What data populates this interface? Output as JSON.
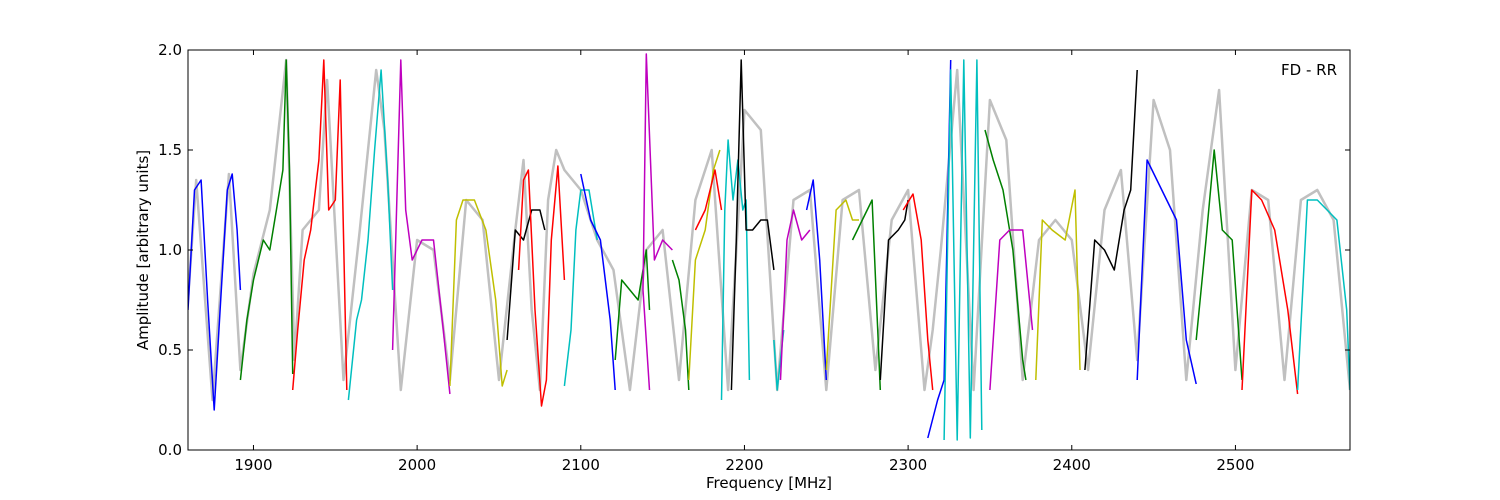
{
  "chart_data": {
    "type": "line",
    "title": "",
    "annotation": "FD - RR",
    "xlabel": "Frequency [MHz]",
    "ylabel": "Amplitude [arbitrary units]",
    "xlim": [
      1860,
      2570
    ],
    "ylim": [
      0.0,
      2.0
    ],
    "xticks": [
      1900,
      2000,
      2100,
      2200,
      2300,
      2400,
      2500
    ],
    "yticks": [
      0.0,
      0.5,
      1.0,
      1.5,
      2.0
    ],
    "xtick_labels": [
      "1900",
      "2000",
      "2100",
      "2200",
      "2300",
      "2400",
      "2500"
    ],
    "ytick_labels": [
      "0.0",
      "0.5",
      "1.0",
      "1.5",
      "2.0"
    ],
    "grid": false,
    "colors": {
      "envelope": "#c0c0c0",
      "blue": "#0000ff",
      "green": "#008000",
      "red": "#ff0000",
      "cyan": "#00bfbf",
      "magenta": "#bf00bf",
      "olive": "#bfbf00",
      "black": "#000000"
    },
    "series": [
      {
        "color": "envelope",
        "x": [
          1860,
          1865,
          1875,
          1885,
          1892,
          1900,
          1910,
          1920,
          1925,
          1930,
          1940,
          1945,
          1955,
          1965,
          1975,
          1980,
          1990,
          2000,
          2010,
          2020,
          2030,
          2040,
          2050,
          2060,
          2065,
          2070,
          2075,
          2080,
          2085,
          2090,
          2100,
          2110,
          2120,
          2130,
          2140,
          2150,
          2160,
          2170,
          2180,
          2190,
          2200,
          2210,
          2220,
          2230,
          2240,
          2250,
          2260,
          2270,
          2280,
          2290,
          2300,
          2310,
          2315,
          2320,
          2330,
          2340,
          2350,
          2360,
          2370,
          2380,
          2390,
          2400,
          2410,
          2420,
          2430,
          2440,
          2450,
          2460,
          2470,
          2480,
          2490,
          2500,
          2510,
          2520,
          2530,
          2540,
          2550,
          2560,
          2570
        ],
        "y": [
          0.75,
          1.35,
          0.25,
          1.38,
          0.4,
          0.88,
          1.2,
          1.95,
          0.45,
          1.1,
          1.2,
          1.85,
          0.35,
          1.1,
          1.9,
          1.6,
          0.3,
          1.05,
          1.0,
          0.35,
          1.25,
          1.15,
          0.35,
          1.1,
          1.45,
          0.7,
          0.3,
          1.25,
          1.5,
          1.4,
          1.3,
          1.05,
          0.9,
          0.3,
          1.0,
          1.1,
          0.35,
          1.25,
          1.5,
          0.3,
          1.7,
          1.6,
          0.3,
          1.25,
          1.3,
          0.3,
          1.25,
          1.3,
          0.4,
          1.15,
          1.3,
          0.3,
          0.6,
          1.0,
          1.9,
          0.3,
          1.75,
          1.55,
          0.35,
          1.05,
          1.15,
          1.05,
          0.4,
          1.2,
          1.4,
          0.45,
          1.75,
          1.5,
          0.35,
          1.2,
          1.8,
          0.4,
          1.3,
          1.25,
          0.35,
          1.25,
          1.3,
          1.15,
          0.3
        ]
      },
      {
        "color": "blue",
        "x": [
          1860,
          1864,
          1868,
          1872,
          1876,
          1880,
          1884,
          1887,
          1890,
          1892
        ],
        "y": [
          0.7,
          1.3,
          1.35,
          0.75,
          0.2,
          0.75,
          1.3,
          1.38,
          1.1,
          0.8
        ]
      },
      {
        "color": "green",
        "x": [
          1892,
          1896,
          1900,
          1906,
          1910,
          1914,
          1918,
          1920,
          1922,
          1924
        ],
        "y": [
          0.35,
          0.65,
          0.85,
          1.05,
          1.0,
          1.2,
          1.4,
          1.95,
          1.4,
          0.38
        ]
      },
      {
        "color": "red",
        "x": [
          1924,
          1927,
          1931,
          1935,
          1940,
          1943,
          1946,
          1950,
          1953,
          1957
        ],
        "y": [
          0.3,
          0.6,
          0.95,
          1.1,
          1.45,
          1.95,
          1.2,
          1.25,
          1.85,
          0.3
        ]
      },
      {
        "color": "cyan",
        "x": [
          1958,
          1963,
          1966,
          1970,
          1974,
          1978,
          1982,
          1985
        ],
        "y": [
          0.25,
          0.65,
          0.75,
          1.05,
          1.5,
          1.9,
          1.35,
          0.8
        ]
      },
      {
        "color": "magenta",
        "x": [
          1985,
          1990,
          1993,
          1997,
          2003,
          2010,
          2016,
          2020
        ],
        "y": [
          0.5,
          1.95,
          1.2,
          0.95,
          1.05,
          1.05,
          0.6,
          0.28
        ]
      },
      {
        "color": "olive",
        "x": [
          2020,
          2024,
          2028,
          2035,
          2042,
          2048,
          2052,
          2055
        ],
        "y": [
          0.32,
          1.15,
          1.25,
          1.25,
          1.1,
          0.75,
          0.32,
          0.4
        ]
      },
      {
        "color": "black",
        "x": [
          2055,
          2060,
          2065,
          2070,
          2075,
          2078
        ],
        "y": [
          0.55,
          1.1,
          1.05,
          1.2,
          1.2,
          1.1
        ]
      },
      {
        "color": "red",
        "x": [
          2062,
          2065,
          2068,
          2072,
          2076,
          2079,
          2082,
          2086,
          2090
        ],
        "y": [
          0.9,
          1.35,
          1.4,
          0.7,
          0.22,
          0.35,
          1.05,
          1.42,
          0.85
        ]
      },
      {
        "color": "cyan",
        "x": [
          2090,
          2094,
          2097,
          2100,
          2105,
          2110
        ],
        "y": [
          0.32,
          0.6,
          1.1,
          1.3,
          1.3,
          1.05
        ]
      },
      {
        "color": "blue",
        "x": [
          2100,
          2106,
          2112,
          2118,
          2121
        ],
        "y": [
          1.38,
          1.15,
          1.05,
          0.65,
          0.3
        ]
      },
      {
        "color": "green",
        "x": [
          2121,
          2125,
          2130,
          2135,
          2138,
          2140,
          2142
        ],
        "y": [
          0.45,
          0.85,
          0.8,
          0.75,
          0.9,
          1.0,
          0.7
        ]
      },
      {
        "color": "magenta",
        "x": [
          2142,
          2138,
          2140,
          2145,
          2150,
          2156
        ],
        "y": [
          0.3,
          0.8,
          1.98,
          0.95,
          1.05,
          1.0
        ]
      },
      {
        "color": "green",
        "x": [
          2156,
          2160,
          2164,
          2166
        ],
        "y": [
          0.95,
          0.85,
          0.6,
          0.3
        ]
      },
      {
        "color": "olive",
        "x": [
          2166,
          2170,
          2176,
          2181,
          2185
        ],
        "y": [
          0.35,
          0.95,
          1.1,
          1.4,
          1.5
        ]
      },
      {
        "color": "red",
        "x": [
          2170,
          2176,
          2182,
          2186
        ],
        "y": [
          1.1,
          1.2,
          1.4,
          1.2
        ]
      },
      {
        "color": "cyan",
        "x": [
          2186,
          2188,
          2190,
          2193,
          2196,
          2199,
          2201,
          2203
        ],
        "y": [
          0.25,
          1.2,
          1.55,
          1.25,
          1.45,
          1.2,
          1.25,
          0.35
        ]
      },
      {
        "color": "black",
        "x": [
          2192,
          2195,
          2198,
          2201,
          2205,
          2210,
          2214,
          2218
        ],
        "y": [
          0.3,
          1.05,
          1.95,
          1.1,
          1.1,
          1.15,
          1.15,
          0.9
        ]
      },
      {
        "color": "cyan",
        "x": [
          2218,
          2220,
          2224
        ],
        "y": [
          0.55,
          0.3,
          0.6
        ]
      },
      {
        "color": "magenta",
        "x": [
          2222,
          2226,
          2230,
          2235,
          2240
        ],
        "y": [
          0.35,
          1.05,
          1.2,
          1.05,
          1.1
        ]
      },
      {
        "color": "blue",
        "x": [
          2238,
          2242,
          2246,
          2250
        ],
        "y": [
          1.2,
          1.35,
          0.95,
          0.35
        ]
      },
      {
        "color": "olive",
        "x": [
          2250,
          2256,
          2262,
          2266,
          2270
        ],
        "y": [
          0.4,
          1.2,
          1.25,
          1.15,
          1.15
        ]
      },
      {
        "color": "green",
        "x": [
          2266,
          2272,
          2278,
          2283
        ],
        "y": [
          1.05,
          1.15,
          1.25,
          0.3
        ]
      },
      {
        "color": "black",
        "x": [
          2283,
          2288,
          2294,
          2298,
          2300
        ],
        "y": [
          0.35,
          1.05,
          1.1,
          1.15,
          1.25
        ]
      },
      {
        "color": "red",
        "x": [
          2297,
          2303,
          2308,
          2312,
          2315
        ],
        "y": [
          1.2,
          1.28,
          1.05,
          0.55,
          0.3
        ]
      },
      {
        "color": "blue",
        "x": [
          2312,
          2318,
          2322,
          2326
        ],
        "y": [
          0.06,
          0.25,
          0.35,
          1.95
        ]
      },
      {
        "color": "cyan",
        "x": [
          2322,
          2326,
          2330,
          2334,
          2338,
          2342,
          2345
        ],
        "y": [
          0.05,
          1.9,
          0.05,
          1.95,
          0.06,
          1.95,
          0.1
        ]
      },
      {
        "color": "green",
        "x": [
          2347,
          2352,
          2358,
          2364,
          2370,
          2372
        ],
        "y": [
          1.6,
          1.45,
          1.3,
          1.0,
          0.45,
          0.35
        ]
      },
      {
        "color": "magenta",
        "x": [
          2350,
          2356,
          2362,
          2370,
          2376
        ],
        "y": [
          0.3,
          1.05,
          1.1,
          1.1,
          0.6
        ]
      },
      {
        "color": "olive",
        "x": [
          2378,
          2382,
          2388,
          2396,
          2402,
          2405
        ],
        "y": [
          0.35,
          1.15,
          1.1,
          1.05,
          1.3,
          0.4
        ]
      },
      {
        "color": "black",
        "x": [
          2408,
          2414,
          2420,
          2426,
          2432,
          2436,
          2440
        ],
        "y": [
          0.4,
          1.05,
          1.0,
          0.9,
          1.2,
          1.3,
          1.9
        ]
      },
      {
        "color": "blue",
        "x": [
          2440,
          2446,
          2452,
          2458,
          2464,
          2470,
          2476
        ],
        "y": [
          0.35,
          1.45,
          1.35,
          1.25,
          1.15,
          0.55,
          0.33
        ]
      },
      {
        "color": "green",
        "x": [
          2476,
          2482,
          2487,
          2492,
          2498,
          2504
        ],
        "y": [
          0.55,
          1.05,
          1.5,
          1.1,
          1.05,
          0.35
        ]
      },
      {
        "color": "red",
        "x": [
          2504,
          2510,
          2516,
          2524,
          2532,
          2538
        ],
        "y": [
          0.3,
          1.3,
          1.25,
          1.1,
          0.7,
          0.28
        ]
      },
      {
        "color": "cyan",
        "x": [
          2538,
          2544,
          2550,
          2556,
          2562,
          2568,
          2570
        ],
        "y": [
          0.3,
          1.25,
          1.25,
          1.2,
          1.15,
          0.7,
          0.3
        ]
      }
    ]
  }
}
